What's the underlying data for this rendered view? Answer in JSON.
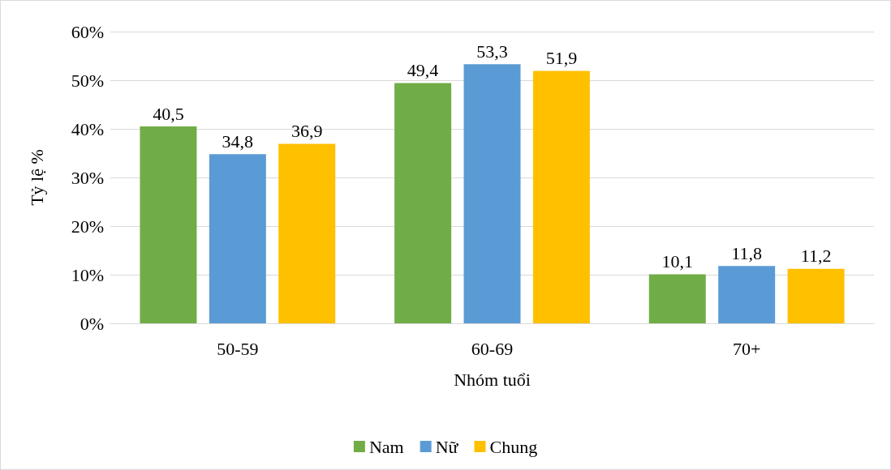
{
  "chart_data": {
    "type": "bar",
    "xlabel": "Nhóm tuổi",
    "ylabel": "Tỷ lệ %",
    "categories": [
      "50-59",
      "60-69",
      "70+"
    ],
    "series": [
      {
        "name": "Nam",
        "color": "#70ad47",
        "values": [
          40.5,
          49.4,
          10.1
        ],
        "value_labels": [
          "40,5",
          "49,4",
          "10,1"
        ]
      },
      {
        "name": "Nữ",
        "color": "#5b9bd5",
        "values": [
          34.8,
          53.3,
          11.8
        ],
        "value_labels": [
          "34,8",
          "53,3",
          "11,8"
        ]
      },
      {
        "name": "Chung",
        "color": "#ffc000",
        "values": [
          36.9,
          51.9,
          11.2
        ],
        "value_labels": [
          "36,9",
          "51,9",
          "11,2"
        ]
      }
    ],
    "ylim": [
      0,
      60
    ],
    "yticks": [
      {
        "value": 0,
        "label": "0%"
      },
      {
        "value": 10,
        "label": "10%"
      },
      {
        "value": 20,
        "label": "20%"
      },
      {
        "value": 30,
        "label": "30%"
      },
      {
        "value": 40,
        "label": "40%"
      },
      {
        "value": 50,
        "label": "50%"
      },
      {
        "value": 60,
        "label": "60%"
      }
    ],
    "grid": "y",
    "legend": "bottom"
  }
}
